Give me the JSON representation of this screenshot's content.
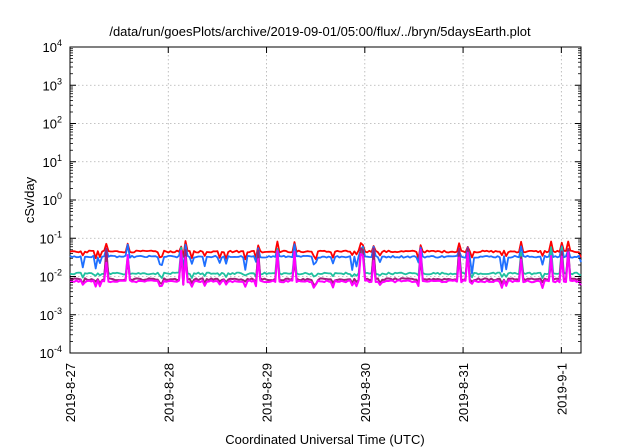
{
  "chart_data": {
    "type": "line",
    "title": "/data/run/goesPlots/archive/2019-09-01/05:00/flux/../bryn/5daysEarth.plot",
    "xlabel": "Coordinated Universal Time (UTC)",
    "ylabel": "cSv/day",
    "yscale": "log",
    "ylim_exp": [
      -4,
      4
    ],
    "yticks": [
      {
        "base": "10",
        "exp": "-4"
      },
      {
        "base": "10",
        "exp": "-3"
      },
      {
        "base": "10",
        "exp": "-2"
      },
      {
        "base": "10",
        "exp": "-1"
      },
      {
        "base": "10",
        "exp": "0"
      },
      {
        "base": "10",
        "exp": "1"
      },
      {
        "base": "10",
        "exp": "2"
      },
      {
        "base": "10",
        "exp": "3"
      },
      {
        "base": "10",
        "exp": "4"
      }
    ],
    "xlim_days": [
      0,
      5.2
    ],
    "xticks": [
      {
        "label": "2019-8-27",
        "day": 0
      },
      {
        "label": "2019-8-28",
        "day": 1
      },
      {
        "label": "2019-8-29",
        "day": 2
      },
      {
        "label": "2019-8-30",
        "day": 3
      },
      {
        "label": "2019-8-31",
        "day": 4
      },
      {
        "label": "2019-9-1",
        "day": 5
      }
    ],
    "grid": true,
    "series": [
      {
        "color": "#ff0000",
        "baseline": 0.045,
        "spike_max": 0.085,
        "dip_min": 0.028
      },
      {
        "color": "#1e6fff",
        "baseline": 0.033,
        "spike_max": 0.07,
        "dip_min": 0.012
      },
      {
        "color": "#20c0a0",
        "baseline": 0.012,
        "spike_max": 0.06,
        "dip_min": 0.009
      },
      {
        "color": "#a0207a",
        "baseline": 0.0085,
        "spike_max": 0.055,
        "dip_min": 0.006
      },
      {
        "color": "#ff00ff",
        "baseline": 0.0075,
        "spike_max": 0.05,
        "dip_min": 0.005
      }
    ]
  }
}
